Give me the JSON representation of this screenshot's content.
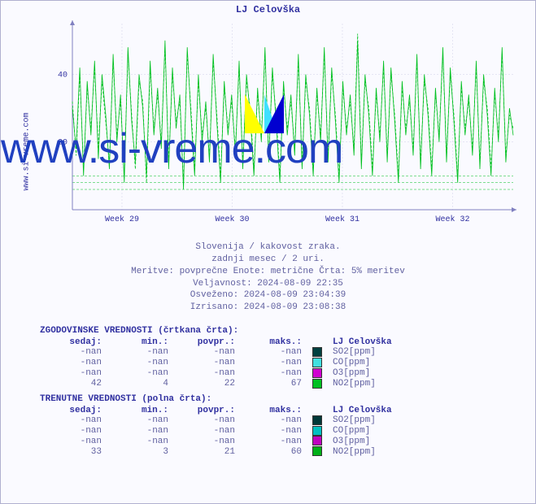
{
  "chart": {
    "title": "LJ Celovška",
    "ylabel_side": "www.si-vreme.com",
    "watermark": "www.si-vreme.com",
    "background_color": "#fafaff",
    "border_color": "#b0b0d0",
    "title_color": "#3030a0",
    "title_fontsize": 12,
    "plot": {
      "ylim": [
        0,
        55
      ],
      "yticks": [
        20,
        40
      ],
      "xticks": [
        "Week 29",
        "Week 30",
        "Week 31",
        "Week 32"
      ],
      "grid_color": "#d0d0e8",
      "axis_color": "#8080c0",
      "tick_fontsize": 10,
      "tick_color": "#3030a0",
      "hist_dash": "3 2",
      "current_dash": "none",
      "line_width": 0.8,
      "no2_baseline_y": 8,
      "series_solid": {
        "color": "#00c020",
        "values": [
          30,
          18,
          42,
          10,
          38,
          22,
          44,
          15,
          40,
          28,
          12,
          46,
          20,
          34,
          8,
          48,
          26,
          14,
          40,
          30,
          10,
          44,
          22,
          36,
          18,
          50,
          12,
          42,
          24,
          34,
          6,
          48,
          28,
          10,
          40,
          20,
          32,
          14,
          46,
          26,
          8,
          38,
          22,
          34,
          16,
          44,
          12,
          40,
          28,
          10,
          36,
          20,
          48,
          14,
          42,
          26,
          8,
          38,
          22,
          34,
          16,
          46,
          12,
          40,
          28,
          10,
          36,
          20,
          48,
          14,
          42,
          26,
          8,
          38,
          22,
          34,
          16,
          50,
          12,
          40,
          28,
          10,
          36,
          20,
          44,
          14,
          42,
          26,
          8,
          38,
          22,
          34,
          16,
          46,
          12,
          40,
          28,
          10,
          36,
          20,
          48,
          14,
          42,
          26,
          8,
          38,
          22,
          34,
          16,
          44,
          12,
          40,
          28,
          10,
          36,
          20,
          48,
          14,
          30,
          22
        ]
      },
      "series_dashed": {
        "color": "#00c020",
        "values": [
          32,
          16,
          40,
          12,
          36,
          24,
          42,
          18,
          38,
          26,
          14,
          44,
          22,
          32,
          10,
          46,
          28,
          12,
          38,
          32,
          8,
          42,
          24,
          34,
          20,
          48,
          14,
          40,
          26,
          32,
          8,
          46,
          30,
          12,
          38,
          22,
          30,
          16,
          44,
          28,
          10,
          36,
          24,
          32,
          18,
          42,
          14,
          38,
          30,
          12,
          34,
          22,
          46,
          16,
          40,
          28,
          10,
          36,
          24,
          32,
          18,
          44,
          14,
          38,
          30,
          12,
          34,
          22,
          46,
          16,
          40,
          28,
          10,
          36,
          24,
          32,
          18,
          52,
          14,
          38,
          30,
          12,
          34,
          22,
          42,
          16,
          40,
          28,
          10,
          36,
          24,
          32,
          18,
          44,
          14,
          38,
          30,
          12,
          34,
          22,
          46,
          16,
          40,
          28,
          10,
          36,
          24,
          32,
          18,
          42,
          14,
          38,
          30,
          12,
          34,
          22,
          46,
          16,
          28,
          24
        ]
      }
    },
    "logo_colors": {
      "triYellow": "#ffff00",
      "triCyan": "#40e0ff",
      "triBlue": "#0000d0"
    }
  },
  "meta": {
    "line1": "Slovenija / kakovost zraka.",
    "line2": "zadnji mesec / 2 uri.",
    "line3": "Meritve: povprečne  Enote: metrične  Črta: 5% meritev",
    "line4": "Veljavnost: 2024-08-09 22:35",
    "line5": "Osveženo: 2024-08-09 23:04:39",
    "line6": "Izrisano: 2024-08-09 23:08:38",
    "fontsize": 11,
    "color": "#6060a0"
  },
  "history": {
    "title": "ZGODOVINSKE VREDNOSTI (črtkana črta):",
    "station": "LJ Celovška",
    "columns": [
      "sedaj:",
      "min.:",
      "povpr.:",
      "maks.:"
    ],
    "rows": [
      {
        "sedaj": "-nan",
        "min": "-nan",
        "povpr": "-nan",
        "maks": "-nan",
        "label": "SO2[ppm]",
        "swatch": "#004040"
      },
      {
        "sedaj": "-nan",
        "min": "-nan",
        "povpr": "-nan",
        "maks": "-nan",
        "label": "CO[ppm]",
        "swatch": "#40e0e0"
      },
      {
        "sedaj": "-nan",
        "min": "-nan",
        "povpr": "-nan",
        "maks": "-nan",
        "label": "O3[ppm]",
        "swatch": "#d000d0"
      },
      {
        "sedaj": "42",
        "min": "4",
        "povpr": "22",
        "maks": "67",
        "label": "NO2[ppm]",
        "swatch": "#00c020"
      }
    ]
  },
  "current": {
    "title": "TRENUTNE VREDNOSTI (polna črta):",
    "station": "LJ Celovška",
    "columns": [
      "sedaj:",
      "min.:",
      "povpr.:",
      "maks.:"
    ],
    "rows": [
      {
        "sedaj": "-nan",
        "min": "-nan",
        "povpr": "-nan",
        "maks": "-nan",
        "label": "SO2[ppm]",
        "swatch": "#003838"
      },
      {
        "sedaj": "-nan",
        "min": "-nan",
        "povpr": "-nan",
        "maks": "-nan",
        "label": "CO[ppm]",
        "swatch": "#00c0c0"
      },
      {
        "sedaj": "-nan",
        "min": "-nan",
        "povpr": "-nan",
        "maks": "-nan",
        "label": "O3[ppm]",
        "swatch": "#c000c0"
      },
      {
        "sedaj": "33",
        "min": "3",
        "povpr": "21",
        "maks": "60",
        "label": "NO2[ppm]",
        "swatch": "#00b018"
      }
    ]
  },
  "col_widths": {
    "c": 70
  }
}
